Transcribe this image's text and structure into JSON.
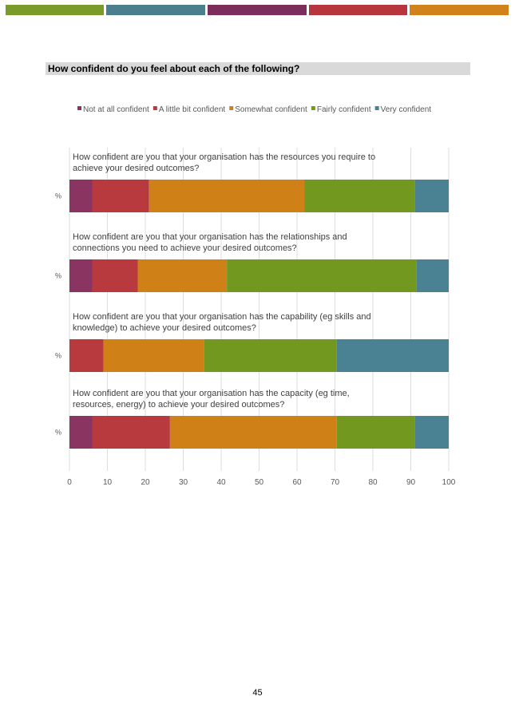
{
  "header_stripes": [
    "#7a9a2a",
    "#4b7f8e",
    "#7d2d5b",
    "#b7363e",
    "#d1821a"
  ],
  "heading": "How confident do you feel about each of the following?",
  "page_number": "45",
  "chart_data": {
    "type": "bar",
    "orientation": "horizontal",
    "stacked": true,
    "legend_position": "top",
    "xlim": [
      0,
      100
    ],
    "xticks": [
      "0",
      "10",
      "20",
      "30",
      "40",
      "50",
      "60",
      "70",
      "80",
      "90",
      "100"
    ],
    "grid": true,
    "series": [
      {
        "name": "Not at all confident",
        "color": "#8a3461"
      },
      {
        "name": "A little bit confident",
        "color": "#b83a3f"
      },
      {
        "name": "Somewhat confident",
        "color": "#cf8118"
      },
      {
        "name": "Fairly confident",
        "color": "#729820"
      },
      {
        "name": "Very confident",
        "color": "#4a8193"
      }
    ],
    "bars": [
      {
        "question": [
          "How confident are you that your organisation has the resources you require to",
          "achieve your desired outcomes?"
        ],
        "axis_label": "%",
        "values": [
          6,
          15,
          41,
          29,
          9
        ]
      },
      {
        "question": [
          "How confident are you that your organisation has the relationships and",
          "connections you need to achieve your desired outcomes?"
        ],
        "axis_label": "%",
        "values": [
          6,
          12,
          23.5,
          50,
          8.5
        ]
      },
      {
        "question": [
          "How confident are you that your organisation has the capability (eg skills and",
          "knowledge) to achieve your desired outcomes?"
        ],
        "axis_label": "%",
        "values": [
          0,
          9,
          26.5,
          35,
          29.5
        ]
      },
      {
        "question": [
          "How confident are you that your organisation has the capacity (eg time,",
          "resources, energy) to achieve your desired outcomes?"
        ],
        "axis_label": "%",
        "values": [
          6,
          20.5,
          44,
          20.5,
          9
        ]
      }
    ]
  }
}
